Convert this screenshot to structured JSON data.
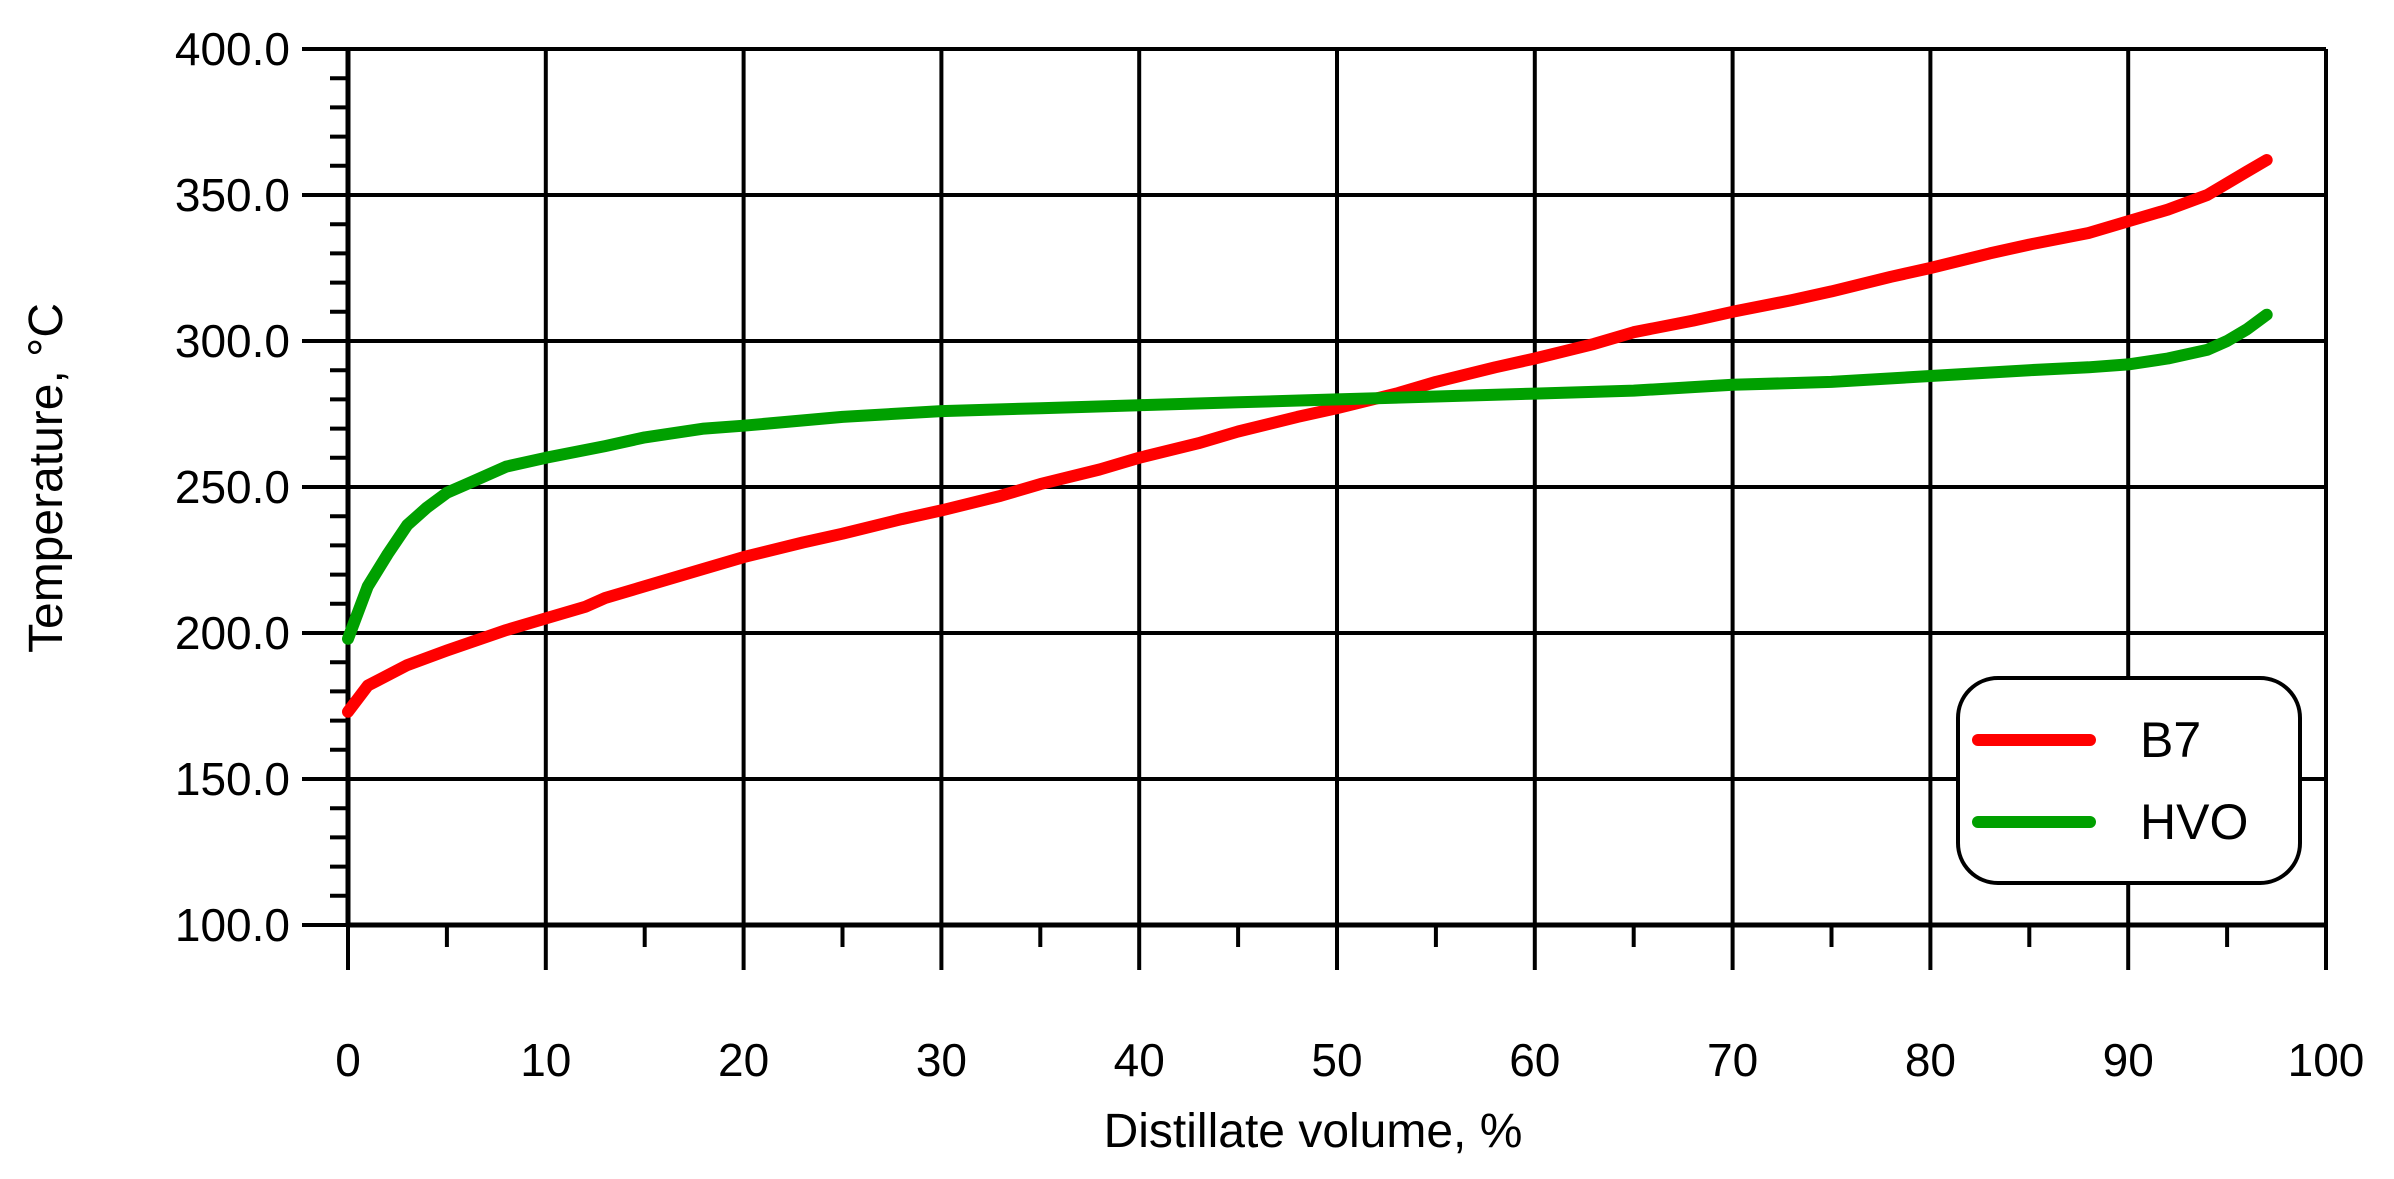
{
  "chart_data": {
    "type": "line",
    "title": "",
    "xlabel": "Distillate volume, %",
    "ylabel": "Temperature, °C",
    "xlim": [
      0,
      100
    ],
    "ylim": [
      100,
      400
    ],
    "x_ticks": [
      0,
      10,
      20,
      30,
      40,
      50,
      60,
      70,
      80,
      90,
      100
    ],
    "x_tick_labels": [
      "0",
      "10",
      "20",
      "30",
      "40",
      "50",
      "60",
      "70",
      "80",
      "90",
      "100"
    ],
    "y_ticks": [
      100,
      150,
      200,
      250,
      300,
      350,
      400
    ],
    "y_tick_labels": [
      "100.0",
      "150.0",
      "200.0",
      "250.0",
      "300.0",
      "350.0",
      "400.0"
    ],
    "grid": true,
    "legend_position": "bottom-right",
    "series": [
      {
        "name": "B7",
        "color": "#ff0000",
        "x": [
          0,
          1,
          3,
          5,
          8,
          10,
          12,
          13,
          15,
          18,
          20,
          23,
          25,
          28,
          30,
          33,
          35,
          38,
          40,
          43,
          45,
          48,
          50,
          53,
          55,
          58,
          60,
          63,
          65,
          68,
          70,
          73,
          75,
          78,
          80,
          83,
          85,
          88,
          90,
          92,
          94,
          95,
          96,
          97
        ],
        "y": [
          173,
          182,
          189,
          194,
          201,
          205,
          209,
          212,
          216,
          222,
          226,
          231,
          234,
          239,
          242,
          247,
          251,
          256,
          260,
          265,
          269,
          274,
          277,
          282,
          286,
          291,
          294,
          299,
          303,
          307,
          310,
          314,
          317,
          322,
          325,
          330,
          333,
          337,
          341,
          345,
          350,
          354,
          358,
          362
        ]
      },
      {
        "name": "HVO",
        "color": "#00a000",
        "x": [
          0,
          1,
          2,
          3,
          4,
          5,
          6,
          8,
          10,
          13,
          15,
          18,
          20,
          25,
          30,
          35,
          40,
          45,
          50,
          55,
          60,
          65,
          70,
          75,
          80,
          85,
          88,
          90,
          92,
          94,
          95,
          96,
          97
        ],
        "y": [
          198,
          216,
          227,
          237,
          243,
          248,
          251,
          257,
          260,
          264,
          267,
          270,
          271,
          274,
          276,
          277,
          278,
          279,
          280,
          281,
          282,
          283,
          285,
          286,
          288,
          290,
          291,
          292,
          294,
          297,
          300,
          304,
          309
        ]
      }
    ]
  }
}
